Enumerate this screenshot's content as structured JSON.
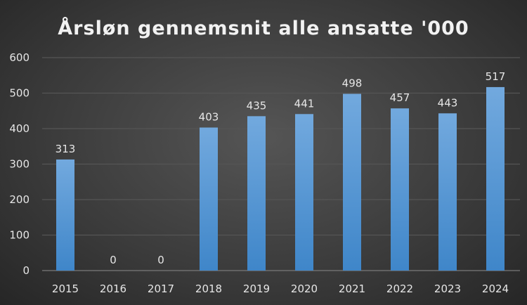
{
  "chart_data": {
    "type": "bar",
    "title": "Årsløn gennemsnit alle ansatte '000",
    "categories": [
      "2015",
      "2016",
      "2017",
      "2018",
      "2019",
      "2020",
      "2021",
      "2022",
      "2023",
      "2024"
    ],
    "values": [
      313,
      0,
      0,
      403,
      435,
      441,
      498,
      457,
      443,
      517
    ],
    "ylim": [
      0,
      600
    ],
    "yticks": [
      0,
      100,
      200,
      300,
      400,
      500,
      600
    ],
    "grid": true,
    "bar_color": "#5b9bd5",
    "xlabel": "",
    "ylabel": ""
  }
}
